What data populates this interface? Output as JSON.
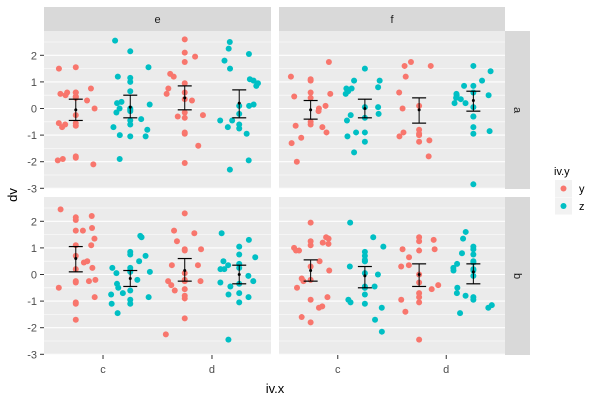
{
  "chart_data": {
    "type": "scatter",
    "subtype": "faceted jitter with mean ± error bars",
    "xlabel": "iv.x",
    "ylabel": "dv",
    "x_categories": [
      "c",
      "d"
    ],
    "yticks": [
      2,
      1,
      0,
      -1,
      -2,
      -3
    ],
    "ylim": [
      -3.1,
      2.7
    ],
    "col_facets": [
      "e",
      "f"
    ],
    "row_facets": [
      "a",
      "b"
    ],
    "legend": {
      "title": "iv.y",
      "position": "right",
      "entries": [
        {
          "label": "y",
          "color": "#F8766D"
        },
        {
          "label": "z",
          "color": "#00BFC4"
        }
      ]
    },
    "grid": true,
    "panels": [
      {
        "col": "e",
        "row": "a",
        "groups": [
          {
            "x": "c",
            "group": "y",
            "mean": -0.05,
            "lo": -0.45,
            "hi": 0.35,
            "points": [
              0.45,
              0.6,
              0.55,
              0.5,
              0.45,
              1.55,
              1.5,
              0.75,
              0.6,
              0.4,
              0.6,
              0.3,
              -0.25,
              -0.55,
              -0.55,
              -0.6,
              -0.65,
              -0.7,
              -1.8,
              -1.85,
              -1.9,
              -1.95,
              -2.1,
              0.0
            ]
          },
          {
            "x": "c",
            "group": "z",
            "mean": 0.05,
            "lo": -0.35,
            "hi": 0.5,
            "points": [
              2.55,
              2.15,
              1.55,
              1.2,
              1.15,
              1.0,
              0.65,
              0.25,
              0.2,
              0.15,
              0.0,
              0.0,
              -0.05,
              -0.1,
              -0.15,
              -0.4,
              -0.45,
              -0.6,
              -0.7,
              -0.8,
              -1.0,
              -1.05,
              -1.05,
              -1.9
            ]
          },
          {
            "x": "d",
            "group": "y",
            "mean": 0.4,
            "lo": -0.05,
            "hi": 0.85,
            "points": [
              2.6,
              2.1,
              1.95,
              1.75,
              1.3,
              1.2,
              0.95,
              0.75,
              0.55,
              0.35,
              0.3,
              -0.15,
              -0.25,
              -0.3,
              -0.35,
              -0.9,
              -0.95,
              -1.4,
              -2.05,
              0.6
            ]
          },
          {
            "x": "d",
            "group": "z",
            "mean": 0.2,
            "lo": -0.35,
            "hi": 0.7,
            "points": [
              2.5,
              2.25,
              2.05,
              1.8,
              1.5,
              1.1,
              1.05,
              0.95,
              0.85,
              0.15,
              0.1,
              0.1,
              -0.2,
              -0.45,
              -0.45,
              -0.6,
              -0.7,
              -0.75,
              -0.95,
              -1.95,
              -2.3
            ]
          }
        ]
      },
      {
        "col": "f",
        "row": "a",
        "groups": [
          {
            "x": "c",
            "group": "y",
            "mean": -0.05,
            "lo": -0.4,
            "hi": 0.3,
            "points": [
              1.75,
              1.2,
              1.05,
              1.1,
              0.6,
              0.45,
              0.55,
              0.4,
              0.1,
              -0.5,
              -0.6,
              -0.65,
              -0.7,
              -0.9,
              -1.1,
              -1.3,
              -2.0,
              0.0,
              -0.1
            ]
          },
          {
            "x": "c",
            "group": "z",
            "mean": 0.0,
            "lo": -0.35,
            "hi": 0.35,
            "points": [
              1.5,
              1.05,
              1.05,
              0.8,
              0.75,
              0.75,
              0.65,
              0.55,
              0.05,
              0.05,
              -0.2,
              -0.25,
              -0.35,
              -0.45,
              -0.9,
              -0.9,
              -1.05,
              -1.25,
              -1.65
            ]
          },
          {
            "x": "d",
            "group": "y",
            "mean": -0.05,
            "lo": -0.55,
            "hi": 0.4,
            "points": [
              1.75,
              1.6,
              1.6,
              1.2,
              0.6,
              0.1,
              0.0,
              -0.8,
              -0.9,
              -0.95,
              -1.0,
              -1.05,
              -1.2,
              -1.25,
              -1.8
            ]
          },
          {
            "x": "d",
            "group": "z",
            "mean": 0.3,
            "lo": -0.1,
            "hi": 0.65,
            "points": [
              1.6,
              1.4,
              1.05,
              0.85,
              0.85,
              0.6,
              0.55,
              0.5,
              0.5,
              0.4,
              0.35,
              0.2,
              0.2,
              0.05,
              -0.3,
              -0.3,
              -0.7,
              -0.85,
              -0.95,
              -2.85
            ]
          }
        ]
      },
      {
        "col": "e",
        "row": "b",
        "groups": [
          {
            "x": "c",
            "group": "y",
            "mean": 0.6,
            "lo": 0.1,
            "hi": 1.05,
            "points": [
              2.45,
              2.2,
              2.15,
              2.05,
              1.75,
              1.65,
              1.65,
              1.35,
              1.1,
              1.1,
              0.7,
              0.45,
              0.5,
              0.25,
              0.2,
              -0.2,
              -0.25,
              -0.25,
              -0.3,
              -0.5,
              -0.85,
              -1.05,
              -1.1,
              -1.7
            ]
          },
          {
            "x": "c",
            "group": "z",
            "mean": -0.15,
            "lo": -0.45,
            "hi": 0.15,
            "points": [
              1.45,
              1.4,
              0.85,
              0.75,
              0.7,
              0.5,
              0.25,
              0.25,
              0.15,
              0.1,
              0.1,
              0.05,
              -0.2,
              -0.35,
              -0.5,
              -0.6,
              -0.7,
              -0.75,
              -0.85,
              -0.95,
              -1.1,
              -1.1,
              -1.45
            ]
          },
          {
            "x": "d",
            "group": "y",
            "mean": 0.15,
            "lo": -0.25,
            "hi": 0.6,
            "points": [
              2.3,
              1.65,
              1.55,
              1.25,
              0.95,
              0.95,
              0.9,
              0.35,
              0.35,
              0.05,
              -0.2,
              -0.25,
              -0.25,
              -0.25,
              -0.4,
              -0.55,
              -0.6,
              -0.8,
              -0.9,
              -1.65,
              -2.25
            ]
          },
          {
            "x": "d",
            "group": "z",
            "mean": 0.0,
            "lo": -0.35,
            "hi": 0.35,
            "points": [
              1.55,
              1.3,
              1.05,
              0.75,
              0.65,
              0.5,
              0.4,
              0.35,
              0.25,
              0.2,
              0.2,
              -0.05,
              -0.25,
              -0.3,
              -0.35,
              -0.45,
              -0.7,
              -0.75,
              -0.85,
              -1.05,
              -2.45
            ]
          }
        ]
      },
      {
        "col": "f",
        "row": "b",
        "groups": [
          {
            "x": "c",
            "group": "y",
            "mean": 0.15,
            "lo": -0.25,
            "hi": 0.55,
            "points": [
              1.95,
              1.4,
              1.35,
              1.25,
              1.15,
              1.2,
              1.1,
              1.0,
              0.9,
              0.9,
              0.5,
              0.3,
              0.15,
              -0.15,
              -0.2,
              -0.25,
              -0.5,
              -0.85,
              -0.95,
              -1.2,
              -1.25,
              -1.6,
              -1.8
            ]
          },
          {
            "x": "c",
            "group": "z",
            "mean": -0.05,
            "lo": -0.5,
            "hi": 0.3,
            "points": [
              1.95,
              1.4,
              1.05,
              0.85,
              0.7,
              0.55,
              0.5,
              0.5,
              0.3,
              0.05,
              0.0,
              -0.45,
              -0.5,
              -0.5,
              -0.45,
              -0.75,
              -0.95,
              -1.05,
              -1.1,
              -1.25,
              -1.7,
              -2.15
            ]
          },
          {
            "x": "d",
            "group": "y",
            "mean": 0.0,
            "lo": -0.45,
            "hi": 0.4,
            "points": [
              1.4,
              1.3,
              1.25,
              0.95,
              0.95,
              0.9,
              0.65,
              0.35,
              0.3,
              0.0,
              -0.3,
              -0.4,
              -0.55,
              -0.7,
              -0.85,
              -0.95,
              -1.05,
              -1.4,
              -2.45
            ]
          },
          {
            "x": "d",
            "group": "z",
            "mean": 0.1,
            "lo": -0.35,
            "hi": 0.4,
            "points": [
              1.6,
              1.35,
              1.05,
              0.95,
              0.8,
              0.75,
              0.5,
              0.45,
              0.4,
              0.25,
              0.2,
              0.15,
              0.15,
              -0.05,
              -0.5,
              -0.7,
              -0.8,
              -0.85,
              -0.95,
              -1.15,
              -1.25,
              -1.45
            ]
          }
        ]
      }
    ]
  }
}
